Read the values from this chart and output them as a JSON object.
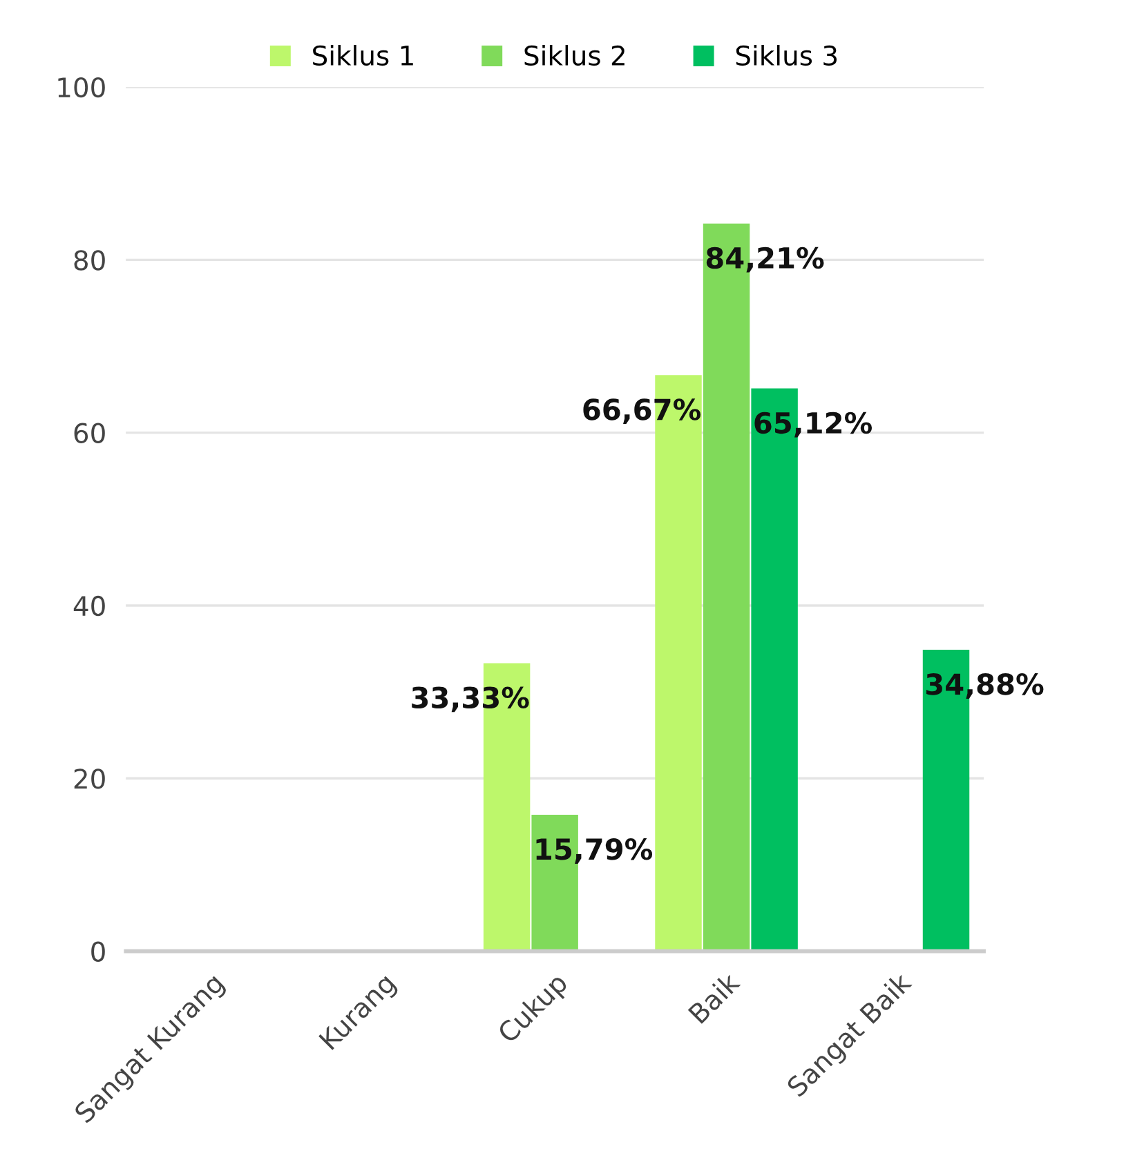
{
  "chart_data": {
    "type": "bar",
    "categories": [
      "Sangat Kurang",
      "Kurang",
      "Cukup",
      "Baik",
      "Sangat Baik"
    ],
    "series": [
      {
        "name": "Siklus 1",
        "color": "#bdf76b",
        "values": [
          null,
          null,
          33.33,
          66.67,
          null
        ],
        "value_labels": [
          null,
          null,
          "33,33%",
          "66,67%",
          null
        ]
      },
      {
        "name": "Siklus 2",
        "color": "#80da5a",
        "values": [
          null,
          null,
          15.79,
          84.21,
          null
        ],
        "value_labels": [
          null,
          null,
          "15,79%",
          "84,21%",
          null
        ]
      },
      {
        "name": "Siklus 3",
        "color": "#00bf60",
        "values": [
          null,
          null,
          null,
          65.12,
          34.88
        ],
        "value_labels": [
          null,
          null,
          null,
          "65,12%",
          "34,88%"
        ]
      }
    ],
    "ylim": [
      0,
      100
    ],
    "yticks": [
      0,
      20,
      40,
      60,
      80,
      100
    ],
    "grid": "y",
    "legend": "top"
  }
}
